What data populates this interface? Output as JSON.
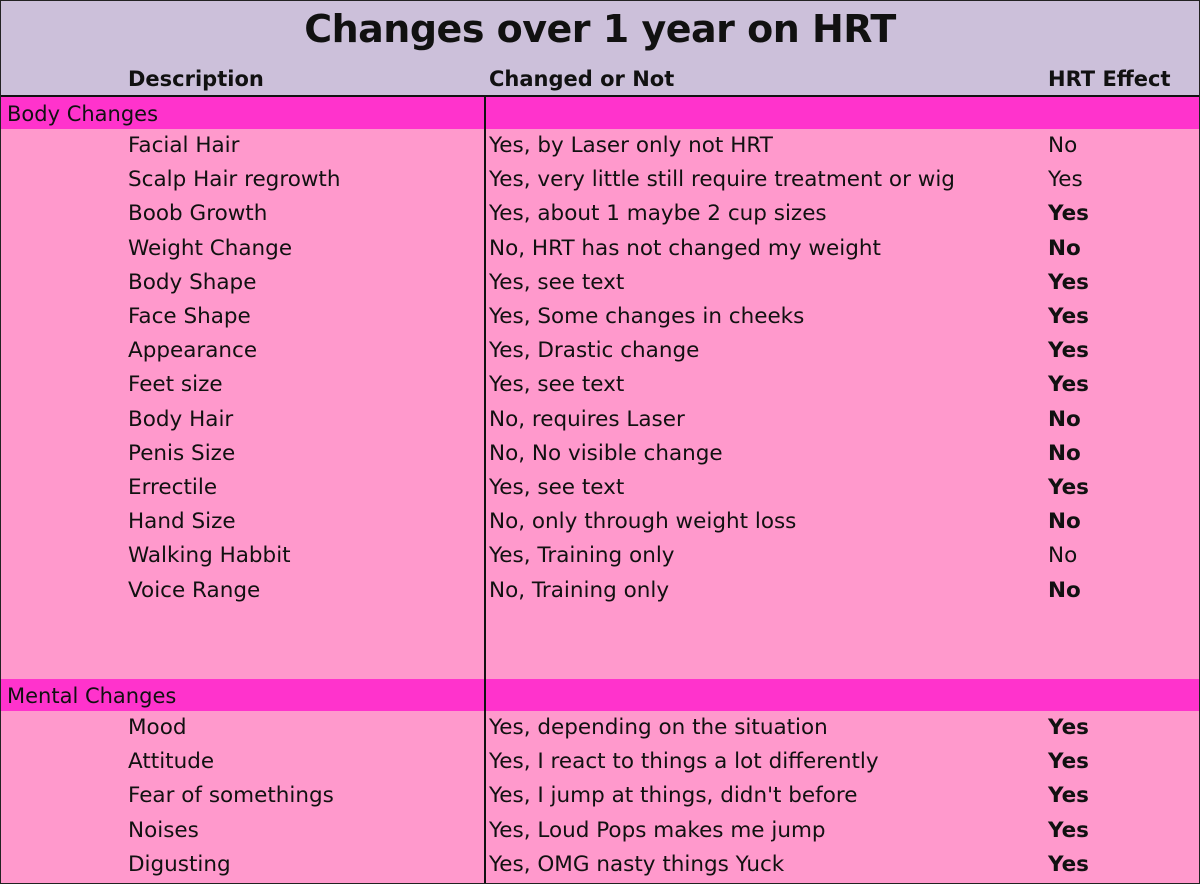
{
  "title": "Changes over 1 year on HRT",
  "columns": {
    "description": "Description",
    "changed": "Changed or Not",
    "effect": "HRT Effect"
  },
  "sections": [
    {
      "label": "Body Changes",
      "rows": [
        {
          "description": "Facial Hair",
          "changed": "Yes, by Laser only not HRT",
          "effect": "No",
          "bold": false
        },
        {
          "description": "Scalp Hair regrowth",
          "changed": "Yes, very little still require treatment or wig",
          "effect": "Yes",
          "bold": false
        },
        {
          "description": "Boob Growth",
          "changed": "Yes, about 1 maybe 2 cup sizes",
          "effect": "Yes",
          "bold": true
        },
        {
          "description": "Weight Change",
          "changed": "No, HRT has not changed my weight",
          "effect": "No",
          "bold": true
        },
        {
          "description": "Body Shape",
          "changed": "Yes, see text",
          "effect": "Yes",
          "bold": true
        },
        {
          "description": "Face Shape",
          "changed": "Yes, Some changes in cheeks",
          "effect": "Yes",
          "bold": true
        },
        {
          "description": "Appearance",
          "changed": "Yes, Drastic change",
          "effect": "Yes",
          "bold": true
        },
        {
          "description": "Feet size",
          "changed": "Yes, see text",
          "effect": "Yes",
          "bold": true
        },
        {
          "description": "Body Hair",
          "changed": "No, requires Laser",
          "effect": "No",
          "bold": true
        },
        {
          "description": "Penis Size",
          "changed": "No, No visible change",
          "effect": "No",
          "bold": true
        },
        {
          "description": "Errectile",
          "changed": "Yes, see text",
          "effect": "Yes",
          "bold": true
        },
        {
          "description": "Hand Size",
          "changed": "No, only through weight loss",
          "effect": "No",
          "bold": true
        },
        {
          "description": "Walking Habbit",
          "changed": "Yes, Training only",
          "effect": "No",
          "bold": false
        },
        {
          "description": "Voice Range",
          "changed": "No, Training only",
          "effect": "No",
          "bold": true
        }
      ]
    },
    {
      "label": "Mental Changes",
      "rows": [
        {
          "description": "Mood",
          "changed": "Yes, depending on the situation",
          "effect": "Yes",
          "bold": true
        },
        {
          "description": "Attitude",
          "changed": "Yes, I react to things a lot differently",
          "effect": "Yes",
          "bold": true
        },
        {
          "description": "Fear of somethings",
          "changed": "Yes, I jump at things, didn't before",
          "effect": "Yes",
          "bold": true
        },
        {
          "description": "Noises",
          "changed": "Yes, Loud Pops makes me jump",
          "effect": "Yes",
          "bold": true
        },
        {
          "description": "Digusting",
          "changed": "Yes, OMG nasty things Yuck",
          "effect": "Yes",
          "bold": true
        }
      ]
    }
  ],
  "colors": {
    "header_bg": "#ccc0da",
    "band_bg": "#ff33cc",
    "body_bg": "#ff99cc",
    "text": "#111111"
  }
}
